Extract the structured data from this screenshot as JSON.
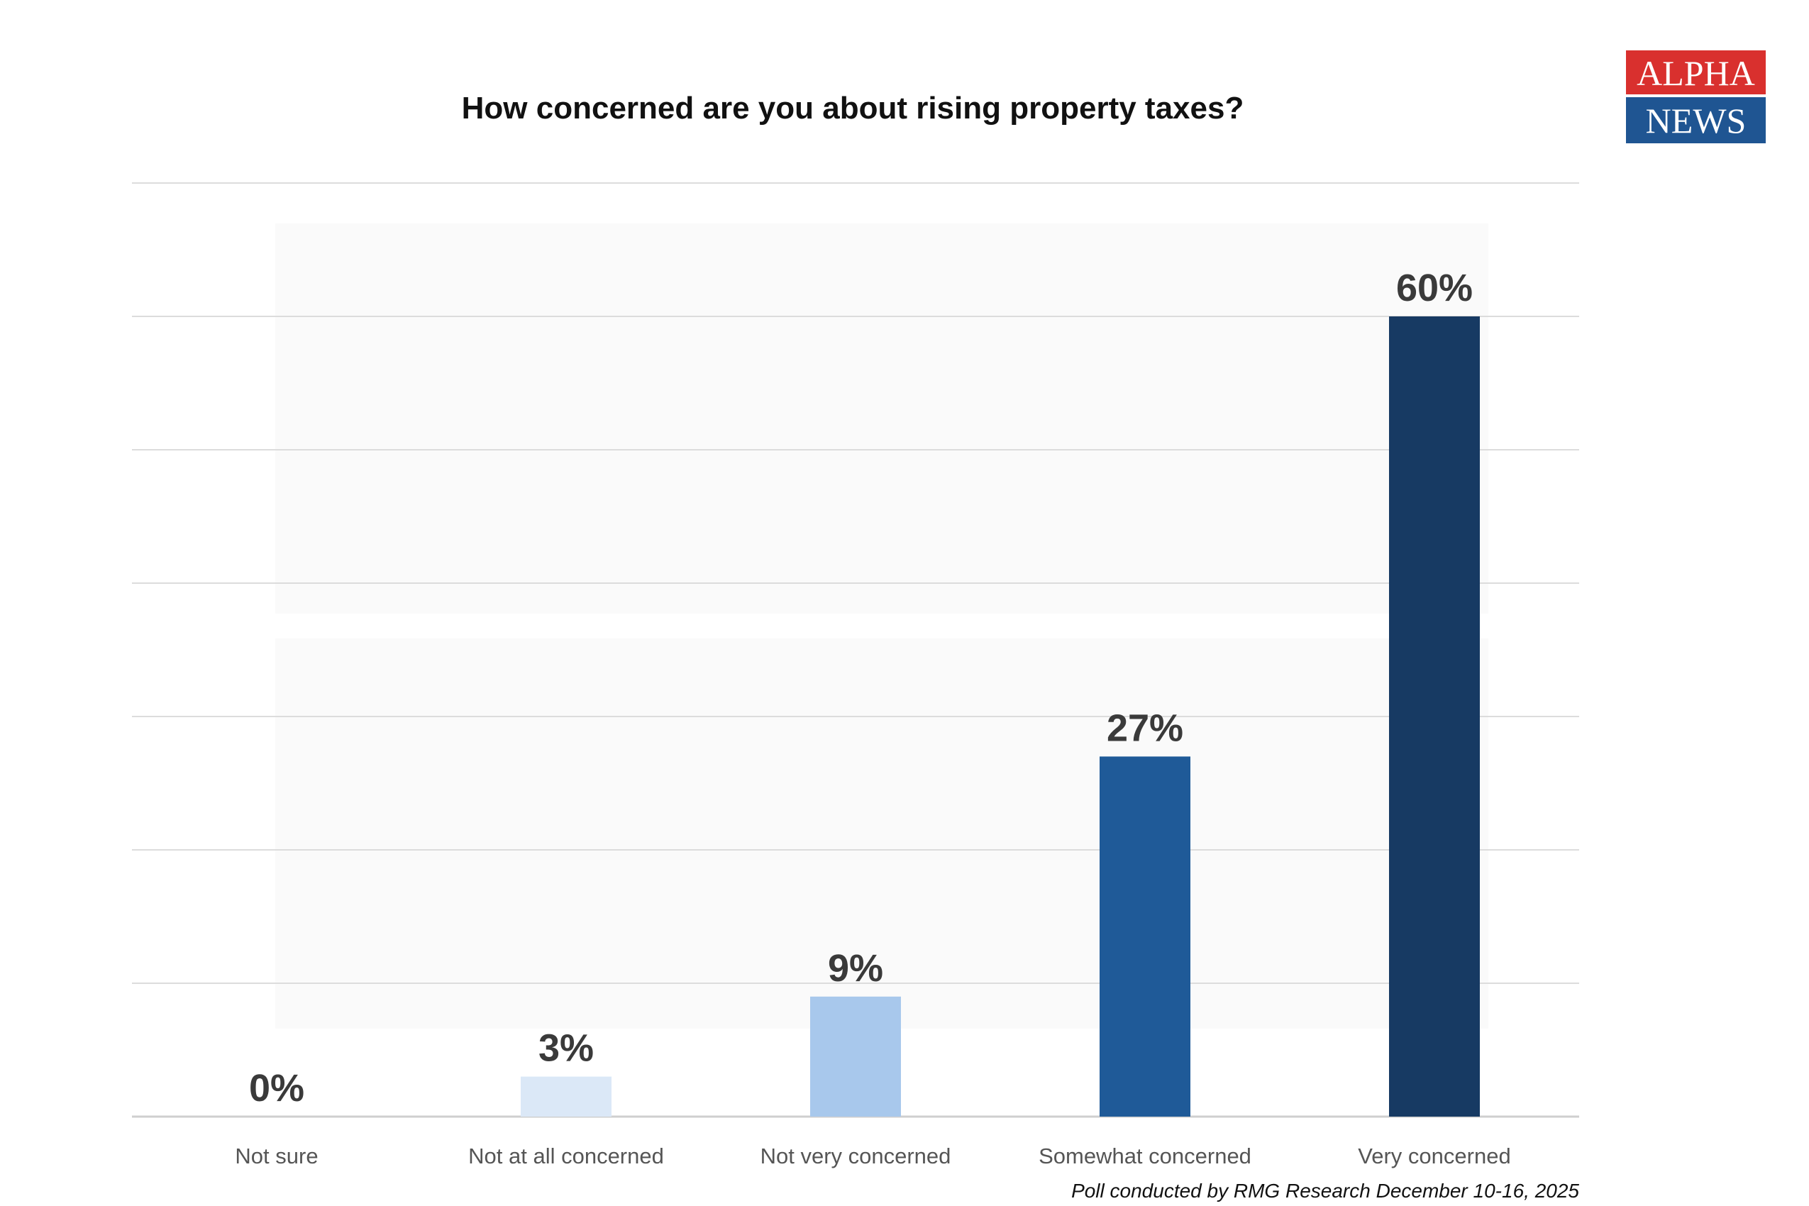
{
  "logo": {
    "line1": "ALPHA",
    "line2": "NEWS"
  },
  "watermark": {
    "line1": "ALPHA",
    "line2": "NEWS"
  },
  "footnote": "Poll conducted by RMG Research December 10-16, 2025",
  "chart_data": {
    "type": "bar",
    "title": "How concerned are you about rising property taxes?",
    "categories": [
      "Not sure",
      "Not at all concerned",
      "Not very concerned",
      "Somewhat concerned",
      "Very concerned"
    ],
    "values": [
      0,
      3,
      9,
      27,
      60
    ],
    "data_labels": [
      "0%",
      "3%",
      "9%",
      "27%",
      "60%"
    ],
    "colors": [
      "#dbe8f7",
      "#dbe8f7",
      "#a8c8ec",
      "#1f5a98",
      "#173a63"
    ],
    "xlabel": "",
    "ylabel": "",
    "ylim": [
      0,
      70
    ],
    "grid": true,
    "y_tick_labels_shown": false
  }
}
